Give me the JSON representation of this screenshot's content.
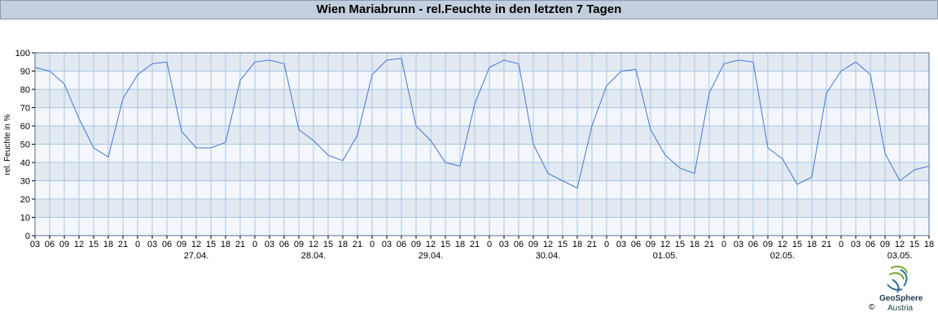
{
  "header": {
    "title": "Wien Mariabrunn - rel.Feuchte in den letzten 7 Tagen"
  },
  "colors": {
    "line": "#4a74d6",
    "band_dark": "#e3e9f1",
    "band_light": "#f3f6fa",
    "grid": "#a9c6e2"
  },
  "logo": {
    "name": "GeoSphere",
    "sub": "Austria",
    "copyright": "©",
    "icon": "geosphere-logo-icon"
  },
  "chart_data": {
    "type": "line",
    "title": "Wien Mariabrunn - rel.Feuchte in den letzten 7 Tagen",
    "xlabel": "",
    "ylabel": "rel. Feuchte in %",
    "ylim": [
      0,
      100
    ],
    "yticks": [
      0,
      10,
      20,
      30,
      40,
      50,
      60,
      70,
      80,
      90,
      100
    ],
    "grid": true,
    "x_start": "26.04. 03:00",
    "x_end": "03.05. 18:00",
    "x_tick_labels": [
      "03",
      "06",
      "09",
      "12",
      "15",
      "18",
      "21",
      "0",
      "03",
      "06",
      "09",
      "12",
      "15",
      "18",
      "21",
      "0",
      "03",
      "06",
      "09",
      "12",
      "15",
      "18",
      "21",
      "0",
      "03",
      "06",
      "09",
      "12",
      "15",
      "18",
      "21",
      "0",
      "03",
      "06",
      "09",
      "12",
      "15",
      "18",
      "21",
      "0",
      "03",
      "06",
      "09",
      "12",
      "15",
      "18",
      "21",
      "0",
      "03",
      "06",
      "09",
      "12",
      "15",
      "18",
      "21",
      "0",
      "03",
      "06",
      "09",
      "12",
      "15",
      "18"
    ],
    "date_labels": [
      "27.04.",
      "28.04.",
      "29.04.",
      "30.04.",
      "01.05.",
      "02.05.",
      "03.05."
    ],
    "series": [
      {
        "x": [
          "26.04. 03:00",
          "26.04. 06:00",
          "26.04. 09:00",
          "26.04. 12:00",
          "26.04. 15:00",
          "26.04. 18:00",
          "26.04. 21:00",
          "27.04. 00:00",
          "27.04. 03:00",
          "27.04. 06:00",
          "27.04. 09:00",
          "27.04. 12:00",
          "27.04. 15:00",
          "27.04. 18:00",
          "27.04. 21:00",
          "28.04. 00:00",
          "28.04. 03:00",
          "28.04. 06:00",
          "28.04. 09:00",
          "28.04. 12:00",
          "28.04. 15:00",
          "28.04. 18:00",
          "28.04. 21:00",
          "29.04. 00:00",
          "29.04. 03:00",
          "29.04. 06:00",
          "29.04. 09:00",
          "29.04. 12:00",
          "29.04. 15:00",
          "29.04. 18:00",
          "29.04. 21:00",
          "30.04. 00:00",
          "30.04. 03:00",
          "30.04. 06:00",
          "30.04. 09:00",
          "30.04. 12:00",
          "30.04. 15:00",
          "30.04. 18:00",
          "30.04. 21:00",
          "01.05. 00:00",
          "01.05. 03:00",
          "01.05. 06:00",
          "01.05. 09:00",
          "01.05. 12:00",
          "01.05. 15:00",
          "01.05. 18:00",
          "01.05. 21:00",
          "02.05. 00:00",
          "02.05. 03:00",
          "02.05. 06:00",
          "02.05. 09:00",
          "02.05. 12:00",
          "02.05. 15:00",
          "02.05. 18:00",
          "02.05. 21:00",
          "03.05. 00:00",
          "03.05. 03:00",
          "03.05. 06:00",
          "03.05. 09:00",
          "03.05. 12:00",
          "03.05. 15:00",
          "03.05. 18:00"
        ],
        "values": [
          92,
          90,
          83,
          64,
          48,
          43,
          75,
          88,
          94,
          95,
          57,
          48,
          48,
          51,
          85,
          95,
          96,
          94,
          58,
          52,
          44,
          41,
          55,
          88,
          96,
          97,
          60,
          52,
          40,
          38,
          72,
          92,
          96,
          94,
          50,
          34,
          30,
          26,
          60,
          82,
          90,
          91,
          58,
          44,
          37,
          34,
          78,
          94,
          96,
          95,
          48,
          42,
          28,
          32,
          78,
          90,
          95,
          88,
          45,
          30,
          36,
          38
        ]
      }
    ]
  }
}
